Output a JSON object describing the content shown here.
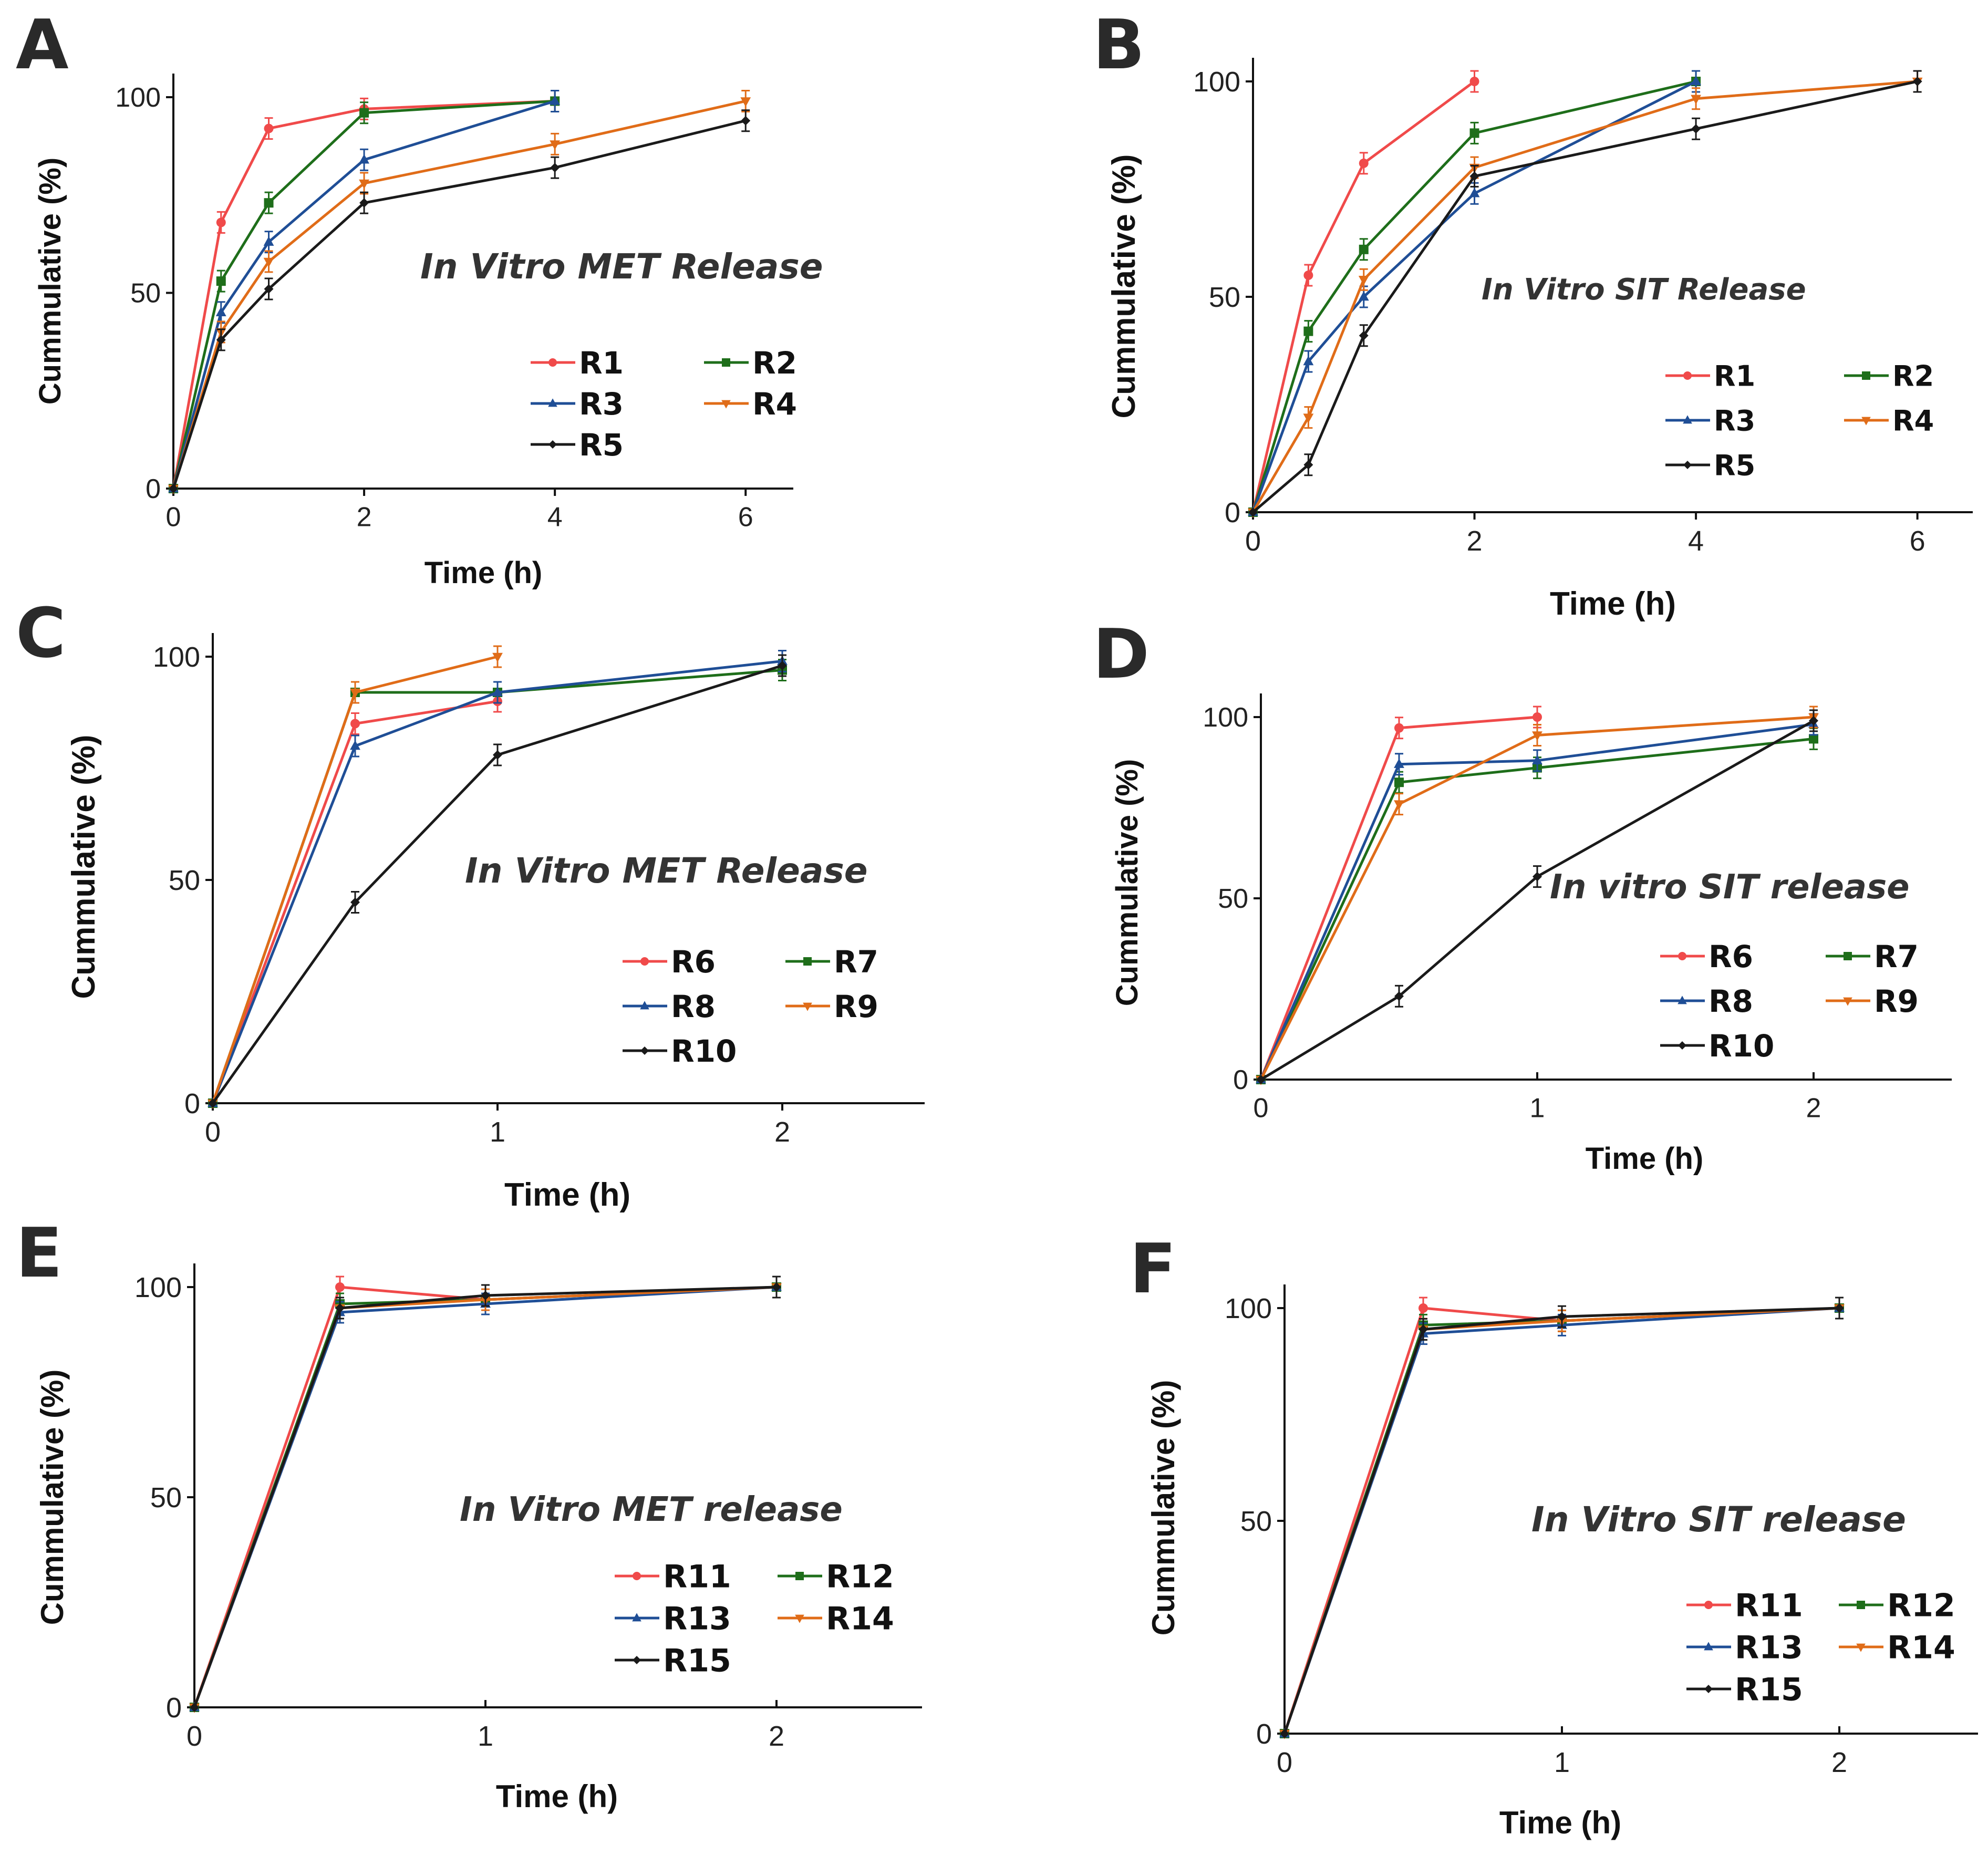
{
  "figure": {
    "series_styles": {
      "red": "#f04a4a",
      "green": "#1e6e1a",
      "blue": "#1f4e96",
      "orange": "#e06c18",
      "black": "#1a1a1a"
    }
  },
  "chart_data": [
    {
      "panel": "A",
      "type": "line",
      "title": "In Vitro MET Release",
      "xlabel": "Time (h)",
      "ylabel": "Cummulative  (%)",
      "xlim": [
        0,
        6.5
      ],
      "ylim": [
        0,
        100
      ],
      "xticks": [
        "0",
        "2",
        "4",
        "6"
      ],
      "yticks": [
        "0",
        "50",
        "100"
      ],
      "series": [
        {
          "name": "R1",
          "color": "red",
          "marker": "circle",
          "x": [
            0,
            0.5,
            1,
            2,
            4
          ],
          "y": [
            0,
            68,
            92,
            97,
            99
          ]
        },
        {
          "name": "R2",
          "color": "green",
          "marker": "square",
          "x": [
            0,
            0.5,
            1,
            2,
            4
          ],
          "y": [
            0,
            53,
            73,
            96,
            99
          ]
        },
        {
          "name": "R3",
          "color": "blue",
          "marker": "triangle",
          "x": [
            0,
            0.5,
            1,
            2,
            4
          ],
          "y": [
            0,
            45,
            63,
            84,
            99
          ]
        },
        {
          "name": "R4",
          "color": "orange",
          "marker": "triangle-down",
          "x": [
            0,
            0.5,
            1,
            2,
            4,
            6
          ],
          "y": [
            0,
            40,
            58,
            78,
            88,
            99
          ]
        },
        {
          "name": "R5",
          "color": "black",
          "marker": "diamond",
          "x": [
            0,
            0.5,
            1,
            2,
            4,
            6
          ],
          "y": [
            0,
            38,
            51,
            73,
            82,
            94
          ]
        }
      ]
    },
    {
      "panel": "B",
      "type": "line",
      "title": "In Vitro SIT Release",
      "xlabel": "Time (h)",
      "ylabel": "Cummulative  (%)",
      "xlim": [
        0,
        6.5
      ],
      "ylim": [
        0,
        100
      ],
      "xticks": [
        "0",
        "2",
        "4",
        "6"
      ],
      "yticks": [
        "0",
        "50",
        "100"
      ],
      "series": [
        {
          "name": "R1",
          "color": "red",
          "marker": "circle",
          "x": [
            0,
            0.5,
            1,
            2
          ],
          "y": [
            0,
            55,
            81,
            100
          ]
        },
        {
          "name": "R2",
          "color": "green",
          "marker": "square",
          "x": [
            0,
            0.5,
            1,
            2,
            4
          ],
          "y": [
            0,
            42,
            61,
            88,
            100
          ]
        },
        {
          "name": "R3",
          "color": "blue",
          "marker": "triangle",
          "x": [
            0,
            0.5,
            1,
            2,
            4
          ],
          "y": [
            0,
            35,
            50,
            74,
            100
          ]
        },
        {
          "name": "R4",
          "color": "orange",
          "marker": "triangle-down",
          "x": [
            0,
            0.5,
            1,
            2,
            4,
            6
          ],
          "y": [
            0,
            22,
            54,
            80,
            96,
            100
          ]
        },
        {
          "name": "R5",
          "color": "black",
          "marker": "diamond",
          "x": [
            0,
            0.5,
            1,
            2,
            4,
            6
          ],
          "y": [
            0,
            11,
            41,
            78,
            89,
            100
          ]
        }
      ]
    },
    {
      "panel": "C",
      "type": "line",
      "title": "In Vitro MET Release",
      "xlabel": "Time (h)",
      "ylabel": "Cummulative  (%)",
      "xlim": [
        0,
        2.5
      ],
      "ylim": [
        0,
        100
      ],
      "xticks": [
        "0",
        "1",
        "2"
      ],
      "yticks": [
        "0",
        "50",
        "100"
      ],
      "series": [
        {
          "name": "R6",
          "color": "red",
          "marker": "circle",
          "x": [
            0,
            0.5,
            1
          ],
          "y": [
            0,
            85,
            90
          ]
        },
        {
          "name": "R7",
          "color": "green",
          "marker": "square",
          "x": [
            0,
            0.5,
            1,
            2
          ],
          "y": [
            0,
            92,
            92,
            97
          ]
        },
        {
          "name": "R8",
          "color": "blue",
          "marker": "triangle",
          "x": [
            0,
            0.5,
            1,
            2
          ],
          "y": [
            0,
            80,
            92,
            99
          ]
        },
        {
          "name": "R9",
          "color": "orange",
          "marker": "triangle-down",
          "x": [
            0,
            0.5,
            1
          ],
          "y": [
            0,
            92,
            100
          ]
        },
        {
          "name": "R10",
          "color": "black",
          "marker": "diamond",
          "x": [
            0,
            0.5,
            1,
            2
          ],
          "y": [
            0,
            45,
            78,
            98
          ]
        }
      ]
    },
    {
      "panel": "D",
      "type": "line",
      "title": "In vitro SIT release",
      "xlabel": "Time (h)",
      "ylabel": "Cummulative  (%)",
      "xlim": [
        0,
        2.5
      ],
      "ylim": [
        0,
        100
      ],
      "xticks": [
        "0",
        "1",
        "2"
      ],
      "yticks": [
        "0",
        "50",
        "100"
      ],
      "series": [
        {
          "name": "R6",
          "color": "red",
          "marker": "circle",
          "x": [
            0,
            0.5,
            1
          ],
          "y": [
            0,
            97,
            100
          ]
        },
        {
          "name": "R7",
          "color": "green",
          "marker": "square",
          "x": [
            0,
            0.5,
            1,
            2
          ],
          "y": [
            0,
            82,
            86,
            94
          ]
        },
        {
          "name": "R8",
          "color": "blue",
          "marker": "triangle",
          "x": [
            0,
            0.5,
            1,
            2
          ],
          "y": [
            0,
            87,
            88,
            98
          ]
        },
        {
          "name": "R9",
          "color": "orange",
          "marker": "triangle-down",
          "x": [
            0,
            0.5,
            1,
            2
          ],
          "y": [
            0,
            76,
            95,
            100
          ]
        },
        {
          "name": "R10",
          "color": "black",
          "marker": "diamond",
          "x": [
            0,
            0.5,
            1,
            2
          ],
          "y": [
            0,
            23,
            56,
            99
          ]
        }
      ]
    },
    {
      "panel": "E",
      "type": "line",
      "title": "In Vitro MET release",
      "xlabel": "Time (h)",
      "ylabel": "Cummulative  (%)",
      "xlim": [
        0,
        2.5
      ],
      "ylim": [
        0,
        100
      ],
      "xticks": [
        "0",
        "1",
        "2"
      ],
      "yticks": [
        "0",
        "50",
        "100"
      ],
      "series": [
        {
          "name": "R11",
          "color": "red",
          "marker": "circle",
          "x": [
            0,
            0.5,
            1,
            2
          ],
          "y": [
            0,
            100,
            97,
            100
          ]
        },
        {
          "name": "R12",
          "color": "green",
          "marker": "square",
          "x": [
            0,
            0.5,
            1,
            2
          ],
          "y": [
            0,
            96,
            97,
            100
          ]
        },
        {
          "name": "R13",
          "color": "blue",
          "marker": "triangle",
          "x": [
            0,
            0.5,
            1,
            2
          ],
          "y": [
            0,
            94,
            96,
            100
          ]
        },
        {
          "name": "R14",
          "color": "orange",
          "marker": "triangle-down",
          "x": [
            0,
            0.5,
            1,
            2
          ],
          "y": [
            0,
            95,
            97,
            100
          ]
        },
        {
          "name": "R15",
          "color": "black",
          "marker": "diamond",
          "x": [
            0,
            0.5,
            1,
            2
          ],
          "y": [
            0,
            95,
            98,
            100
          ]
        }
      ]
    },
    {
      "panel": "F",
      "type": "line",
      "title": "In Vitro SIT release",
      "xlabel": "Time (h)",
      "ylabel": "Cummulative  (%)",
      "xlim": [
        0,
        2.5
      ],
      "ylim": [
        0,
        100
      ],
      "xticks": [
        "0",
        "1",
        "2"
      ],
      "yticks": [
        "0",
        "50",
        "100"
      ],
      "series": [
        {
          "name": "R11",
          "color": "red",
          "marker": "circle",
          "x": [
            0,
            0.5,
            1,
            2
          ],
          "y": [
            0,
            100,
            97,
            100
          ]
        },
        {
          "name": "R12",
          "color": "green",
          "marker": "square",
          "x": [
            0,
            0.5,
            1,
            2
          ],
          "y": [
            0,
            96,
            97,
            100
          ]
        },
        {
          "name": "R13",
          "color": "blue",
          "marker": "triangle",
          "x": [
            0,
            0.5,
            1,
            2
          ],
          "y": [
            0,
            94,
            96,
            100
          ]
        },
        {
          "name": "R14",
          "color": "orange",
          "marker": "triangle-down",
          "x": [
            0,
            0.5,
            1,
            2
          ],
          "y": [
            0,
            95,
            97,
            100
          ]
        },
        {
          "name": "R15",
          "color": "black",
          "marker": "diamond",
          "x": [
            0,
            0.5,
            1,
            2
          ],
          "y": [
            0,
            95,
            98,
            100
          ]
        }
      ]
    }
  ]
}
